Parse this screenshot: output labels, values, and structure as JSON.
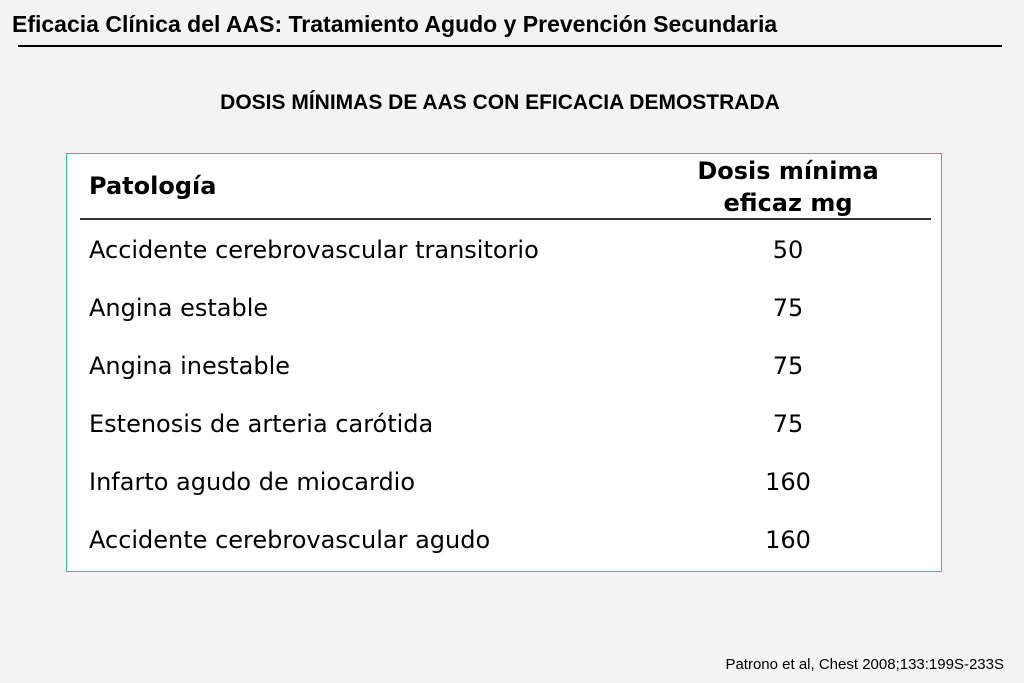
{
  "slide": {
    "title": "Eficacia Clínica del AAS: Tratamiento Agudo y Prevención Secundaria",
    "subtitle": "DOSIS MÍNIMAS DE AAS CON EFICACIA DEMOSTRADA",
    "citation": "Patrono et al, Chest 2008;133:199S-233S"
  },
  "table": {
    "border_color": "#3fb89a",
    "headers": {
      "pathology": "Patología",
      "dose_line1": "Dosis mínima",
      "dose_line2": "eficaz mg"
    },
    "rows": [
      {
        "pathology": "Accidente cerebrovascular transitorio",
        "dose": "50"
      },
      {
        "pathology": "Angina estable",
        "dose": "75"
      },
      {
        "pathology": "Angina inestable",
        "dose": "75"
      },
      {
        "pathology": "Estenosis de arteria carótida",
        "dose": "75"
      },
      {
        "pathology": "Infarto agudo de miocardio",
        "dose": "160"
      },
      {
        "pathology": "Accidente cerebrovascular agudo",
        "dose": "160"
      }
    ]
  }
}
